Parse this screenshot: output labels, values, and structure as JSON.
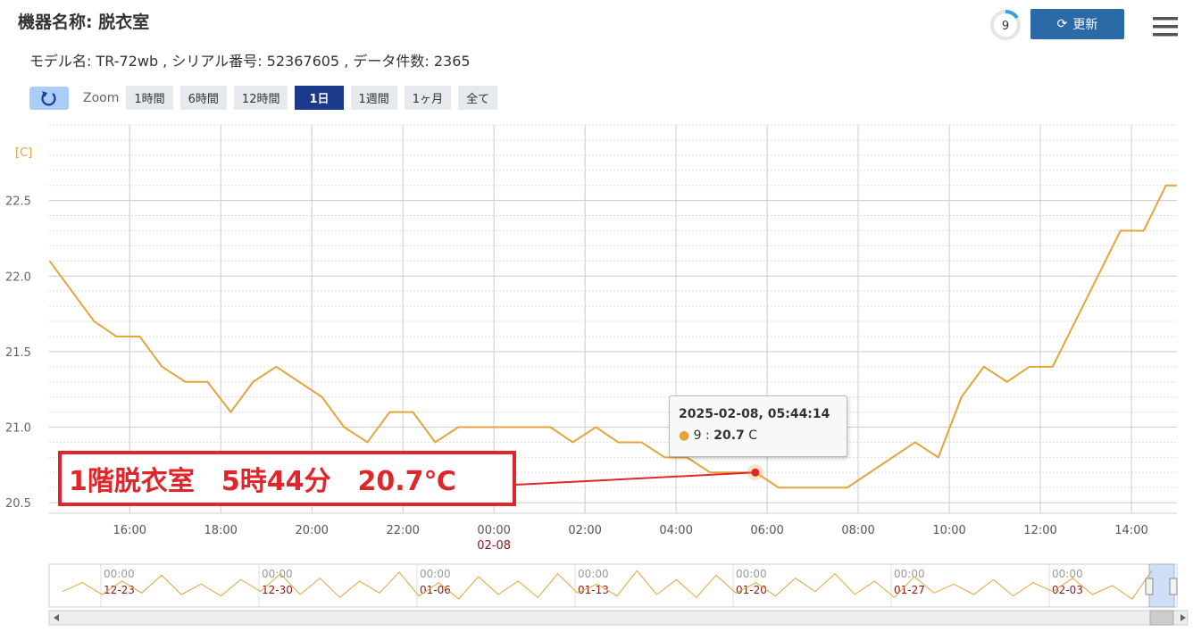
{
  "header": {
    "title": "機器名称: 脱衣室",
    "subtitle": "モデル名: TR-72wb , シリアル番号: 52367605 , データ件数: 2365",
    "badge": "9",
    "refresh": "更新"
  },
  "zoom": {
    "label": "Zoom",
    "buttons": [
      "1時間",
      "6時間",
      "12時間",
      "1日",
      "1週間",
      "1ヶ月",
      "全て"
    ],
    "active": 3
  },
  "chart_data": {
    "type": "line",
    "y_unit": "[C]",
    "color": "#e3a43a",
    "x": [
      14.24,
      15.22,
      15.71,
      16.22,
      16.71,
      17.22,
      17.71,
      18.22,
      18.71,
      19.22,
      20.22,
      20.71,
      21.22,
      21.71,
      22.22,
      22.71,
      23.22,
      25.24,
      25.73,
      26.24,
      26.73,
      27.24,
      27.75,
      28.24,
      28.75,
      29.75,
      30.25,
      31.76,
      33.25,
      33.76,
      34.27,
      34.76,
      35.27,
      35.76,
      36.27,
      37.76,
      38.27,
      38.76,
      39.0
    ],
    "series": [
      {
        "name": "9",
        "color": "#e3a43a",
        "values": [
          22.1,
          21.7,
          21.6,
          21.6,
          21.4,
          21.3,
          21.3,
          21.1,
          21.3,
          21.4,
          21.2,
          21.0,
          20.9,
          21.1,
          21.1,
          20.9,
          21.0,
          21.0,
          20.9,
          21.0,
          20.9,
          20.9,
          20.8,
          20.8,
          20.7,
          20.7,
          20.6,
          20.6,
          20.9,
          20.8,
          21.2,
          21.4,
          21.3,
          21.4,
          21.4,
          22.3,
          22.3,
          22.6,
          22.6
        ]
      }
    ],
    "xlim": [
      14.23,
      39.0
    ],
    "ylim": [
      20.43,
      23.0
    ],
    "xticks": [
      {
        "value": 16,
        "label": "16:00"
      },
      {
        "value": 18,
        "label": "18:00"
      },
      {
        "value": 20,
        "label": "20:00"
      },
      {
        "value": 22,
        "label": "22:00"
      },
      {
        "value": 24,
        "label": "00:00",
        "sublabel": "02-08"
      },
      {
        "value": 26,
        "label": "02:00"
      },
      {
        "value": 28,
        "label": "04:00"
      },
      {
        "value": 30,
        "label": "06:00"
      },
      {
        "value": 32,
        "label": "08:00"
      },
      {
        "value": 34,
        "label": "10:00"
      },
      {
        "value": 36,
        "label": "12:00"
      },
      {
        "value": 38,
        "label": "14:00"
      }
    ],
    "yticks": [
      {
        "value": 20.5,
        "label": "20.5"
      },
      {
        "value": 21,
        "label": "21.0"
      },
      {
        "value": 21.5,
        "label": "21.5"
      },
      {
        "value": 22,
        "label": "22.0"
      },
      {
        "value": 22.5,
        "label": "22.5"
      }
    ],
    "minor_grid_step": 0.1,
    "grid": true,
    "tooltip": {
      "title": "2025-02-08, 05:44:14",
      "series_name": "9",
      "value": 20.7,
      "unit": "C",
      "x": 29.74
    },
    "annotation": "1階脱衣室　5時44分　20.7℃"
  },
  "navigator": {
    "ticks": [
      {
        "time": "00:00",
        "date": "12-23"
      },
      {
        "time": "00:00",
        "date": "12-30"
      },
      {
        "time": "00:00",
        "date": "01-06"
      },
      {
        "time": "00:00",
        "date": "01-13"
      },
      {
        "time": "00:00",
        "date": "01-20"
      },
      {
        "time": "00:00",
        "date": "01-27"
      },
      {
        "time": "00:00",
        "date": "02-03"
      }
    ],
    "values": [
      21.2,
      21.8,
      21.0,
      21.9,
      21.1,
      22.3,
      21.0,
      21.7,
      20.9,
      22.0,
      21.2,
      22.4,
      21.0,
      22.1,
      20.8,
      21.9,
      21.1,
      22.5,
      20.9,
      21.8,
      20.7,
      22.2,
      21.0,
      21.9,
      20.8,
      22.4,
      21.1,
      21.7,
      20.9,
      22.6,
      21.0,
      22.0,
      20.8,
      22.3,
      21.1,
      21.8,
      20.9,
      22.1,
      21.2,
      22.4,
      21.0,
      21.9,
      20.8,
      22.2,
      21.1,
      21.7,
      21.0,
      22.0,
      20.9,
      21.8,
      21.2,
      22.1,
      21.0,
      21.6,
      20.7,
      22.6
    ]
  }
}
